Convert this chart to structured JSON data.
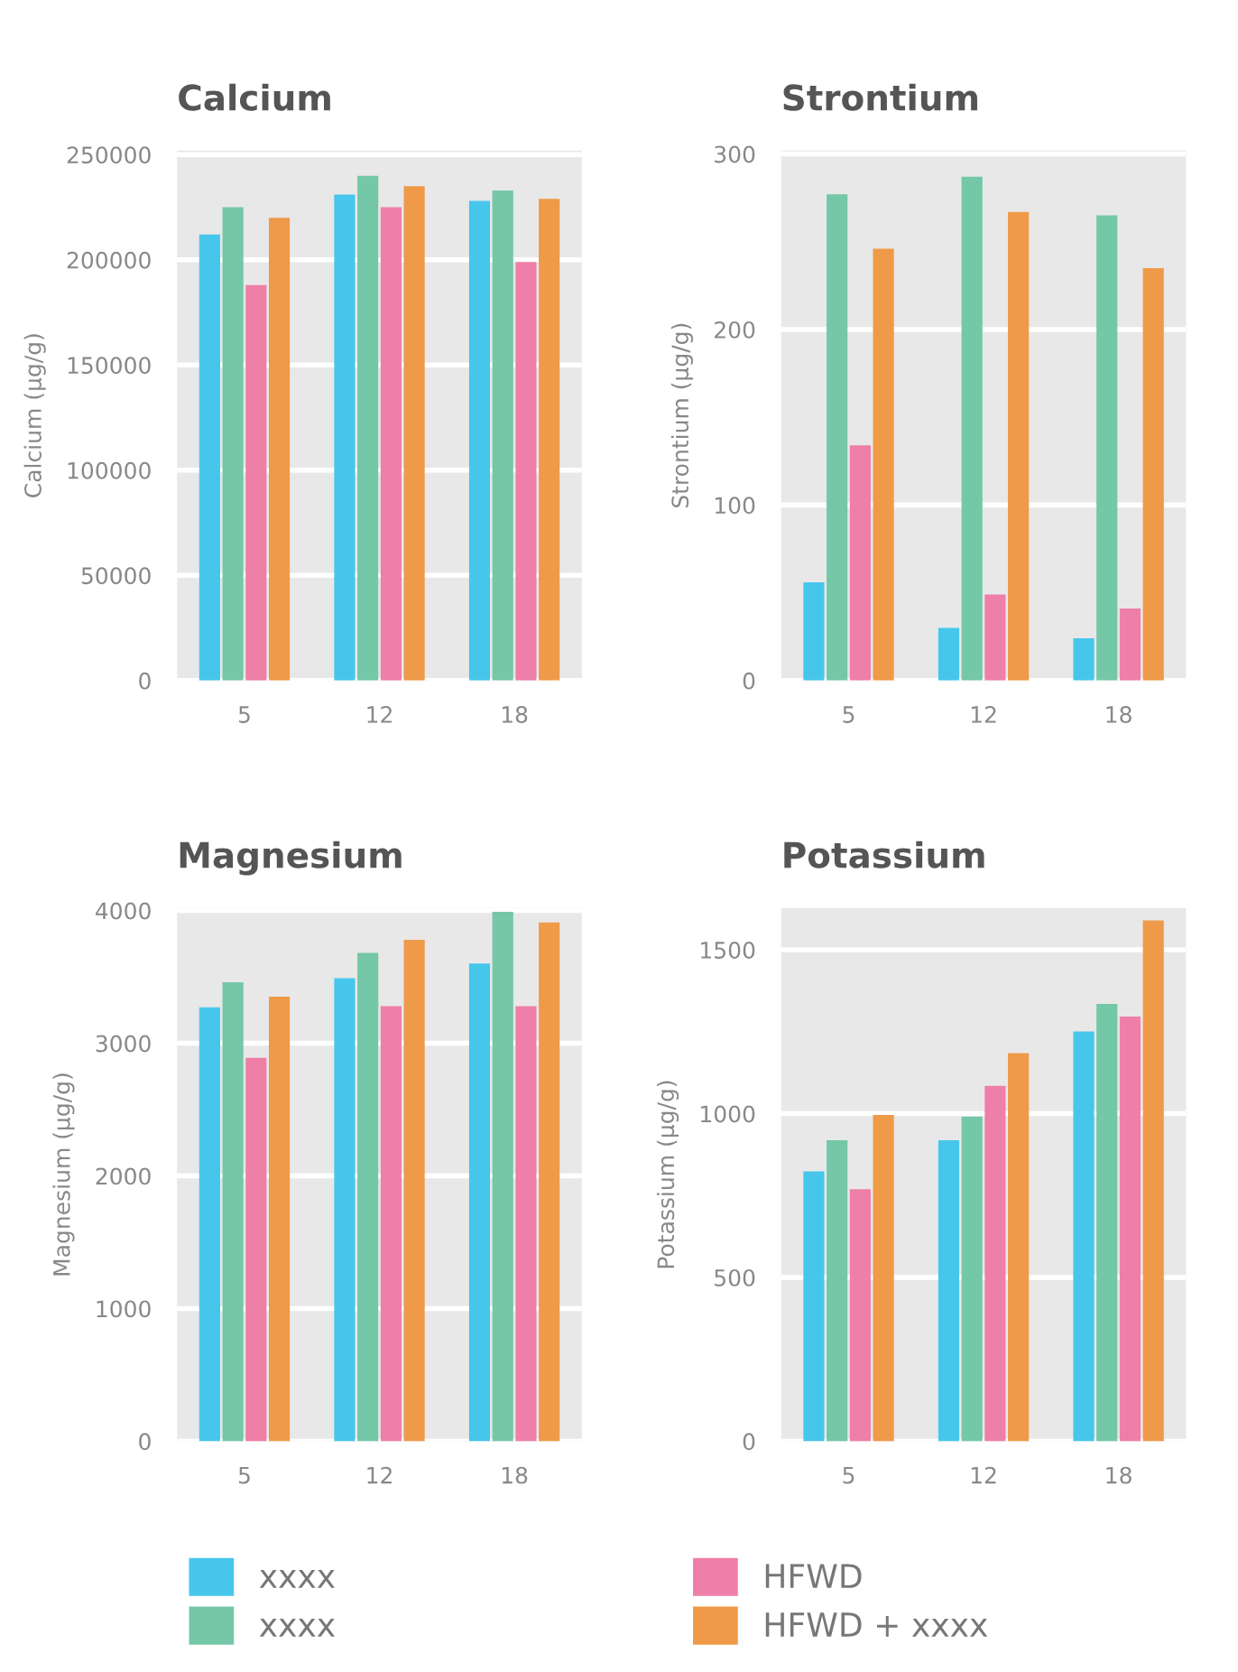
{
  "chart_data": [
    {
      "type": "bar",
      "title": "Calcium",
      "ylabel": "Calcium (µg/g)",
      "categories": [
        "5",
        "12",
        "18"
      ],
      "ylim": [
        0,
        252000
      ],
      "yticks": [
        0,
        50000,
        100000,
        150000,
        200000,
        250000
      ],
      "grid": "y",
      "legend": "bottom",
      "series": [
        {
          "name": "xxxx",
          "color": "#47c6ec",
          "values": [
            212000,
            231000,
            228000
          ]
        },
        {
          "name": "xxxx",
          "color": "#74c7a7",
          "values": [
            225000,
            240000,
            233000
          ]
        },
        {
          "name": "HFWD",
          "color": "#ee7fa8",
          "values": [
            188000,
            225000,
            199000
          ]
        },
        {
          "name": "HFWD + xxxx",
          "color": "#ef9a49",
          "values": [
            220000,
            235000,
            229000
          ]
        }
      ]
    },
    {
      "type": "bar",
      "title": "Strontium",
      "ylabel": "Strontium (µg/g)",
      "categories": [
        "5",
        "12",
        "18"
      ],
      "ylim": [
        0,
        302
      ],
      "yticks": [
        0,
        100,
        200,
        300
      ],
      "grid": "y",
      "series": [
        {
          "color": "#47c6ec",
          "values": [
            56,
            30,
            24
          ]
        },
        {
          "color": "#74c7a7",
          "values": [
            277,
            287,
            265
          ]
        },
        {
          "color": "#ee7fa8",
          "values": [
            134,
            49,
            41
          ]
        },
        {
          "color": "#ef9a49",
          "values": [
            246,
            267,
            235
          ]
        }
      ]
    },
    {
      "type": "bar",
      "title": "Magnesium",
      "ylabel": "Magnesium (µg/g)",
      "categories": [
        "5",
        "12",
        "18"
      ],
      "ylim": [
        0,
        4020
      ],
      "yticks": [
        0,
        1000,
        2000,
        3000,
        4000
      ],
      "grid": "y",
      "series": [
        {
          "color": "#47c6ec",
          "values": [
            3270,
            3490,
            3600
          ]
        },
        {
          "color": "#74c7a7",
          "values": [
            3460,
            3680,
            3990
          ]
        },
        {
          "color": "#ee7fa8",
          "values": [
            2890,
            3280,
            3280
          ]
        },
        {
          "color": "#ef9a49",
          "values": [
            3350,
            3780,
            3910
          ]
        }
      ]
    },
    {
      "type": "bar",
      "title": "Potassium",
      "ylabel": "Potassium (µg/g)",
      "categories": [
        "5",
        "12",
        "18"
      ],
      "ylim": [
        0,
        1628
      ],
      "yticks": [
        0,
        500,
        1000,
        1500
      ],
      "grid": "y",
      "series": [
        {
          "color": "#47c6ec",
          "values": [
            824,
            919,
            1251
          ]
        },
        {
          "color": "#74c7a7",
          "values": [
            919,
            991,
            1335
          ]
        },
        {
          "color": "#ee7fa8",
          "values": [
            769,
            1085,
            1296
          ]
        },
        {
          "color": "#ef9a49",
          "values": [
            996,
            1185,
            1590
          ]
        }
      ]
    }
  ]
}
